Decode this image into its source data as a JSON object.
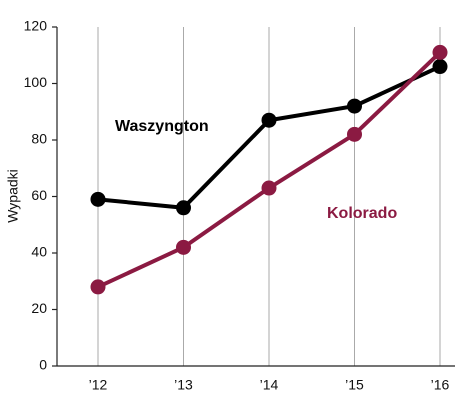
{
  "chart_data": {
    "type": "line",
    "y_label": "Wypadki",
    "categories": [
      "’12",
      "’13",
      "’14",
      "’15",
      "’16"
    ],
    "series": [
      {
        "name": "Waszyngton",
        "color": "#000000",
        "values": [
          59,
          56,
          87,
          92,
          106
        ]
      },
      {
        "name": "Kolorado",
        "color": "#8b1a42",
        "values": [
          28,
          42,
          63,
          82,
          111
        ]
      }
    ],
    "ylim": [
      0,
      120
    ],
    "yticks": [
      0,
      20,
      40,
      60,
      80,
      100,
      120
    ],
    "grid": true
  }
}
